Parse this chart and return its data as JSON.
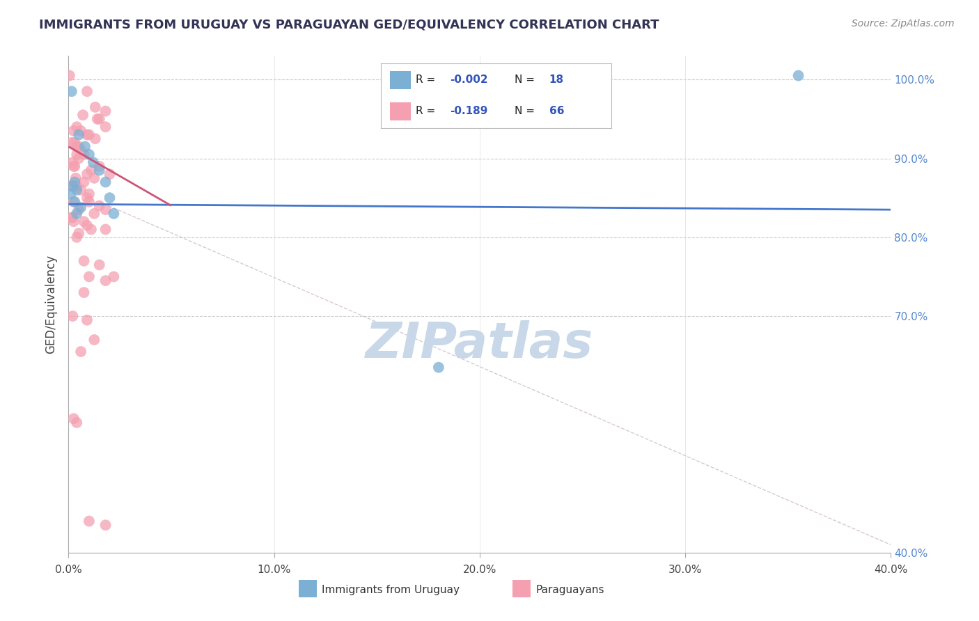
{
  "title": "IMMIGRANTS FROM URUGUAY VS PARAGUAYAN GED/EQUIVALENCY CORRELATION CHART",
  "source_text": "Source: ZipAtlas.com",
  "ylabel": "GED/Equivalency",
  "xmin": 0.0,
  "xmax": 40.0,
  "ymin": 40.0,
  "ymax": 103.0,
  "ytick_vals": [
    100.0,
    90.0,
    80.0,
    70.0,
    40.0
  ],
  "xtick_vals": [
    0.0,
    10.0,
    20.0,
    30.0,
    40.0
  ],
  "legend_label1": "Immigrants from Uruguay",
  "legend_label2": "Paraguayans",
  "blue_color": "#7BAFD4",
  "pink_color": "#F4A0B0",
  "blue_line_color": "#4477CC",
  "pink_line_color": "#CC5577",
  "diag_line_color": "#CCBBCC",
  "watermark_color": "#C8D8E8",
  "background_color": "#FFFFFF",
  "blue_points_x": [
    0.15,
    0.5,
    0.8,
    1.0,
    1.2,
    1.5,
    0.3,
    0.2,
    0.4,
    0.1,
    2.0,
    1.8,
    0.3,
    0.6,
    2.2,
    18.0,
    35.5,
    0.4
  ],
  "blue_points_y": [
    98.5,
    93.0,
    91.5,
    90.5,
    89.5,
    88.5,
    87.0,
    86.5,
    86.0,
    85.5,
    85.0,
    87.0,
    84.5,
    83.8,
    83.0,
    63.5,
    100.5,
    83.0
  ],
  "pink_points_x": [
    0.05,
    0.9,
    1.3,
    1.8,
    1.4,
    0.7,
    1.5,
    0.6,
    0.4,
    1.8,
    1.0,
    0.25,
    0.9,
    1.3,
    0.15,
    0.3,
    0.4,
    0.5,
    0.6,
    0.75,
    0.4,
    0.5,
    0.2,
    0.25,
    0.3,
    1.5,
    1.1,
    0.9,
    2.0,
    1.25,
    0.35,
    0.75,
    0.15,
    0.4,
    0.6,
    1.0,
    0.9,
    0.25,
    1.0,
    1.5,
    1.8,
    0.5,
    1.25,
    0.2,
    0.15,
    0.25,
    0.75,
    0.9,
    1.1,
    1.8,
    0.5,
    0.4,
    0.75,
    1.5,
    1.0,
    2.2,
    1.8,
    0.75,
    0.2,
    0.9,
    1.25,
    0.6,
    0.25,
    0.4,
    1.8,
    1.0
  ],
  "pink_points_y": [
    100.5,
    98.5,
    96.5,
    96.0,
    95.0,
    95.5,
    95.0,
    93.5,
    94.0,
    94.0,
    93.0,
    93.5,
    93.0,
    92.5,
    92.0,
    92.0,
    91.5,
    91.5,
    91.0,
    90.5,
    90.5,
    90.0,
    89.5,
    89.0,
    89.0,
    89.0,
    88.5,
    88.0,
    88.0,
    87.5,
    87.5,
    87.0,
    86.5,
    86.5,
    86.0,
    85.5,
    85.0,
    84.5,
    84.5,
    84.0,
    83.5,
    83.5,
    83.0,
    82.5,
    82.5,
    82.0,
    82.0,
    81.5,
    81.0,
    81.0,
    80.5,
    80.0,
    77.0,
    76.5,
    75.0,
    75.0,
    74.5,
    73.0,
    70.0,
    69.5,
    67.0,
    65.5,
    57.0,
    56.5,
    43.5,
    44.0
  ],
  "blue_trend_x": [
    0.0,
    40.0
  ],
  "blue_trend_y": [
    84.2,
    83.5
  ],
  "pink_trend_x": [
    0.0,
    5.0
  ],
  "pink_trend_y": [
    91.5,
    84.0
  ],
  "diag_line_x": [
    1.5,
    40.0
  ],
  "diag_line_y": [
    84.5,
    41.0
  ]
}
